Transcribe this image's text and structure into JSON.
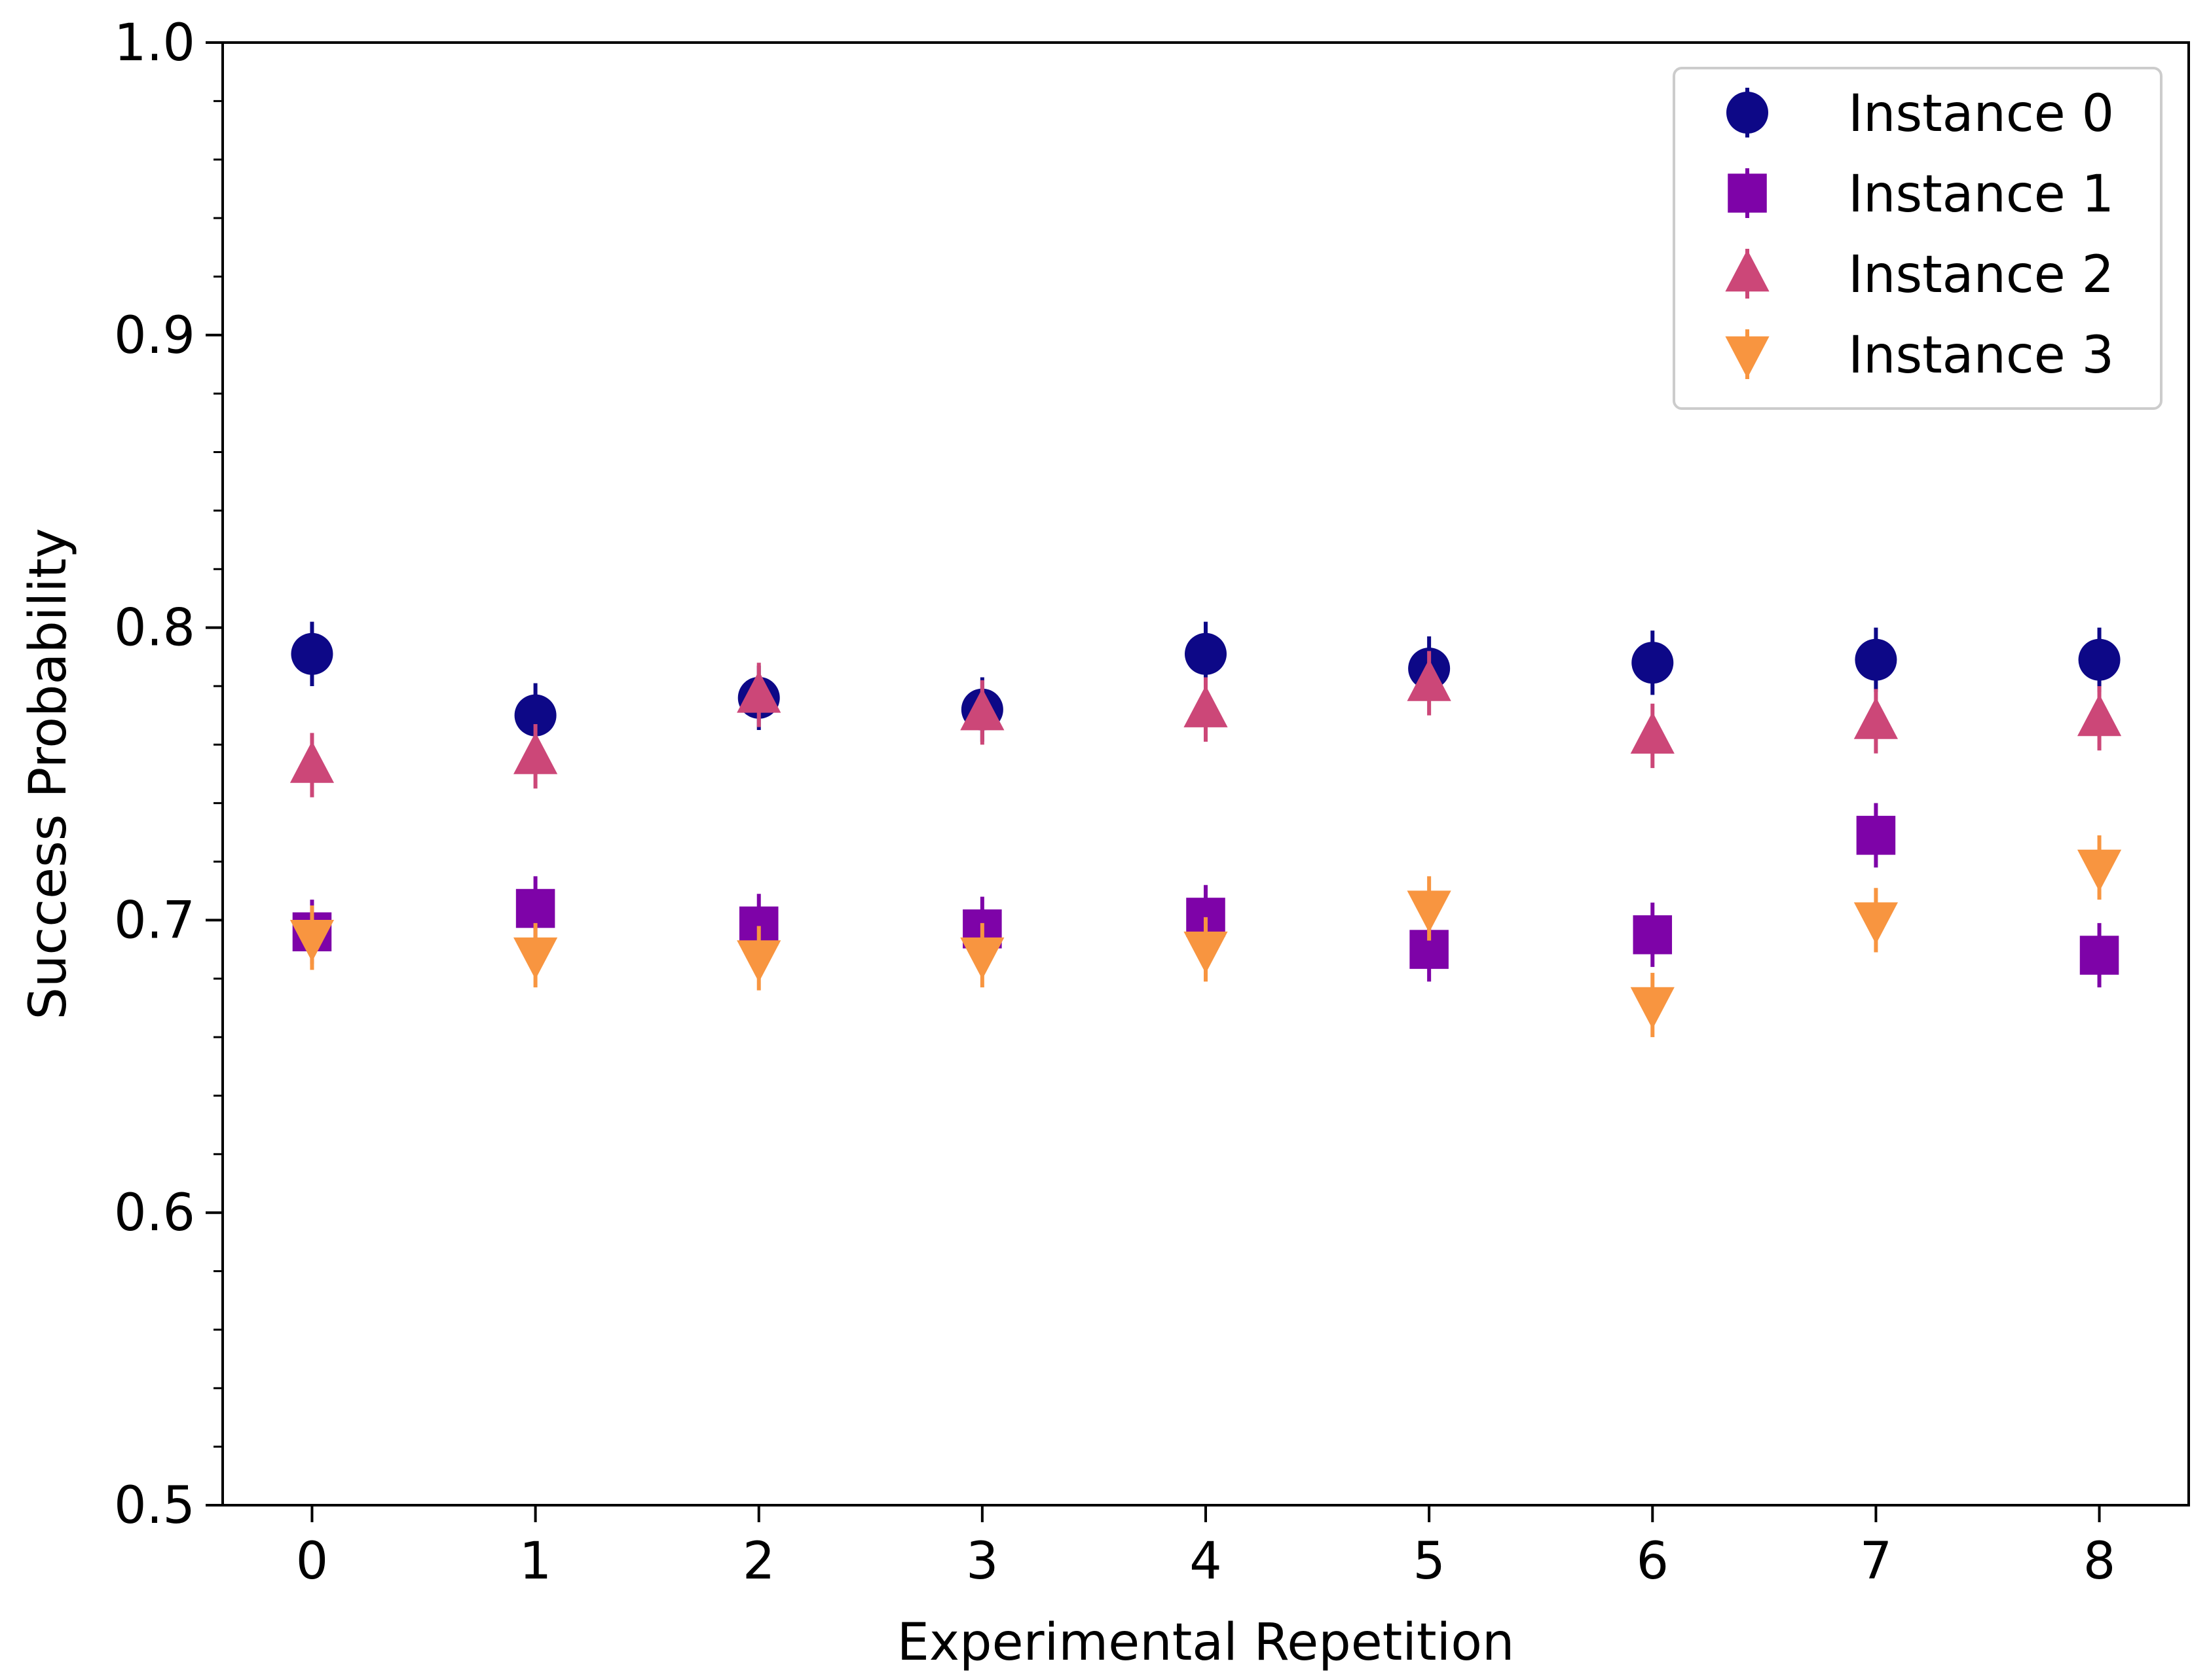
{
  "chart_data": {
    "type": "scatter",
    "title": "",
    "xlabel": "Experimental Repetition",
    "ylabel": "Success Probability",
    "xlim": [
      -0.4,
      8.4
    ],
    "ylim": [
      0.5,
      1.0
    ],
    "x": [
      0,
      1,
      2,
      3,
      4,
      5,
      6,
      7,
      8
    ],
    "x_ticks": [
      "0",
      "1",
      "2",
      "3",
      "4",
      "5",
      "6",
      "7",
      "8"
    ],
    "y_ticks": [
      {
        "value": 0.5,
        "label": "0.5"
      },
      {
        "value": 0.6,
        "label": "0.6"
      },
      {
        "value": 0.7,
        "label": "0.7"
      },
      {
        "value": 0.8,
        "label": "0.8"
      },
      {
        "value": 0.9,
        "label": "0.9"
      },
      {
        "value": 1.0,
        "label": "1.0"
      }
    ],
    "y_minor_step": 0.02,
    "grid": false,
    "legend_position": "top-right",
    "series": [
      {
        "name": "Instance 0",
        "marker": "circle",
        "color": "#0d0887",
        "values": [
          0.791,
          0.77,
          0.776,
          0.772,
          0.791,
          0.786,
          0.788,
          0.789,
          0.789
        ],
        "errors": [
          0.011,
          0.011,
          0.011,
          0.011,
          0.011,
          0.011,
          0.011,
          0.011,
          0.011
        ]
      },
      {
        "name": "Instance 1",
        "marker": "square",
        "color": "#7e03a8",
        "values": [
          0.696,
          0.704,
          0.698,
          0.697,
          0.701,
          0.69,
          0.695,
          0.729,
          0.688
        ],
        "errors": [
          0.011,
          0.011,
          0.011,
          0.011,
          0.011,
          0.011,
          0.011,
          0.011,
          0.011
        ]
      },
      {
        "name": "Instance 2",
        "marker": "triangle-up",
        "color": "#cc4778",
        "values": [
          0.753,
          0.756,
          0.777,
          0.771,
          0.772,
          0.781,
          0.763,
          0.768,
          0.769
        ],
        "errors": [
          0.011,
          0.011,
          0.011,
          0.011,
          0.011,
          0.011,
          0.011,
          0.011,
          0.011
        ]
      },
      {
        "name": "Instance 3",
        "marker": "triangle-down",
        "color": "#f89540",
        "values": [
          0.694,
          0.688,
          0.687,
          0.688,
          0.69,
          0.704,
          0.671,
          0.7,
          0.718
        ],
        "errors": [
          0.011,
          0.011,
          0.011,
          0.011,
          0.011,
          0.011,
          0.011,
          0.011,
          0.011
        ]
      }
    ]
  }
}
